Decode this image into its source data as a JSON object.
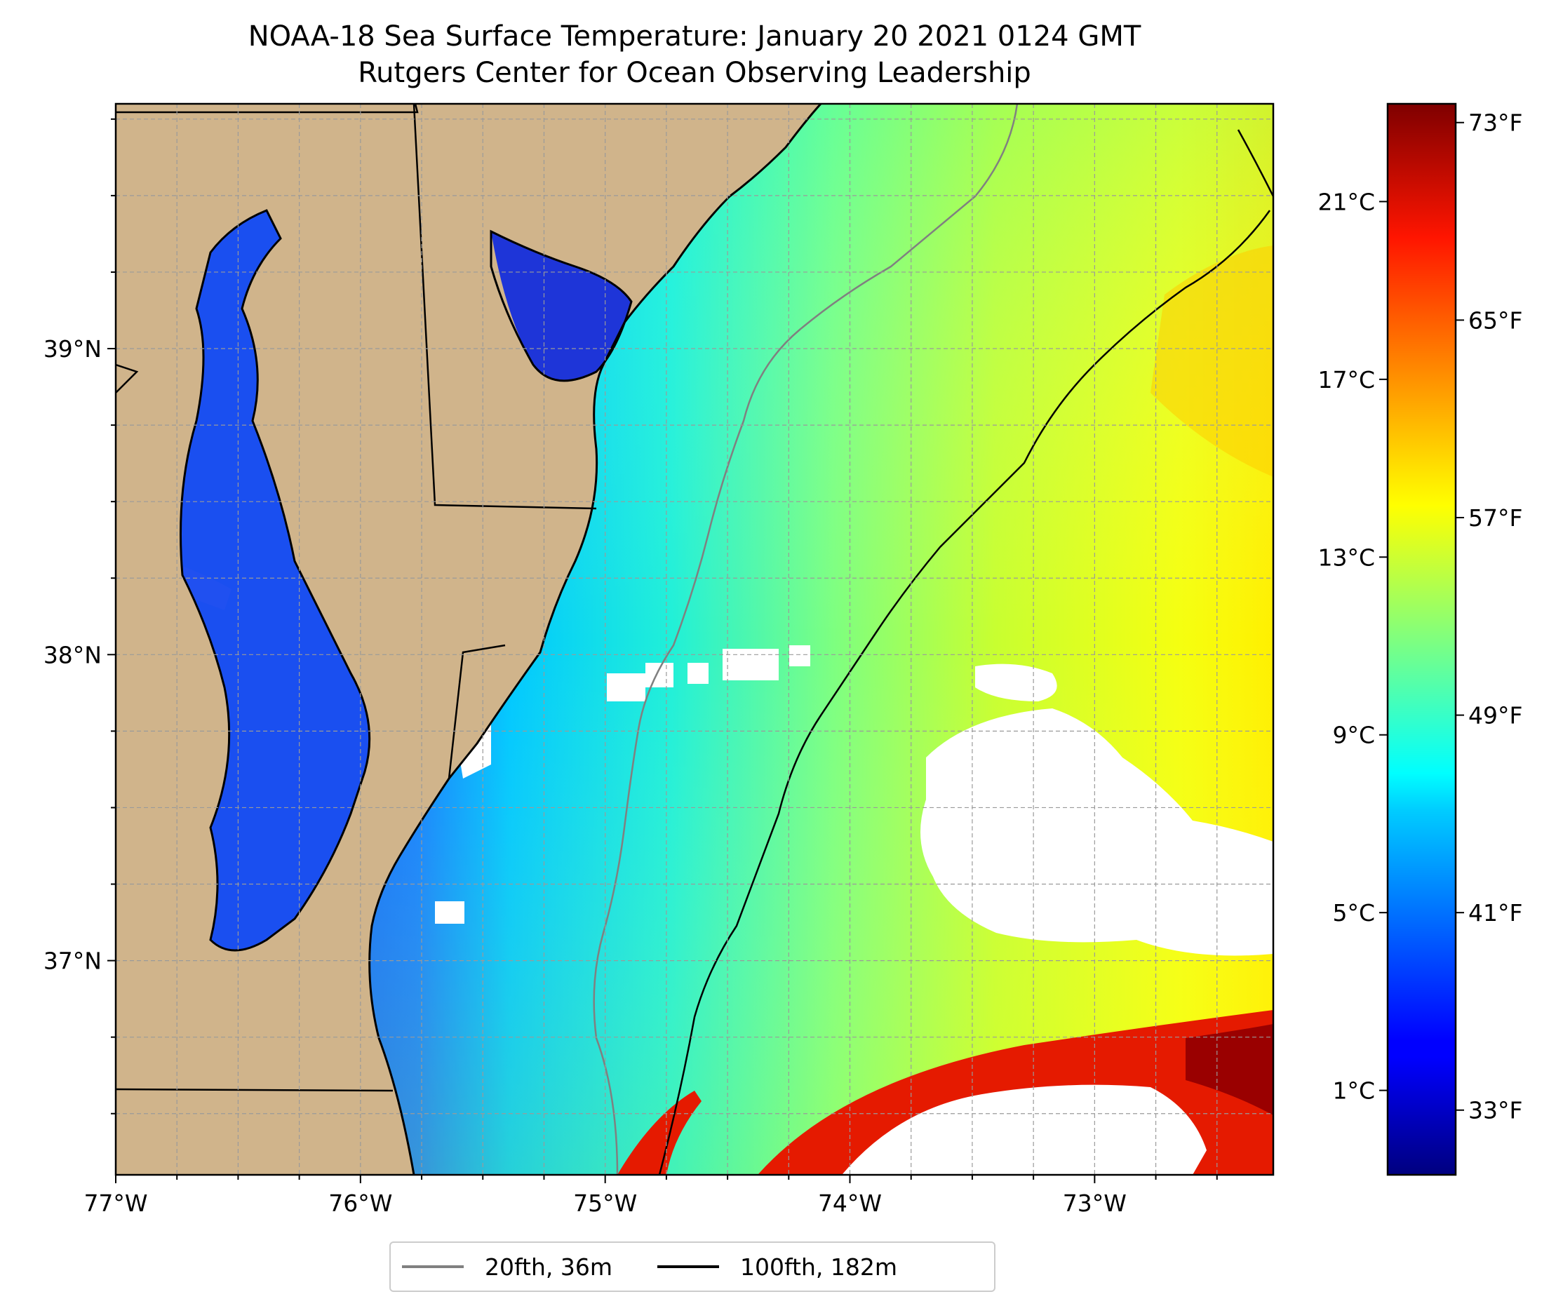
{
  "title": {
    "line1": "NOAA-18 Sea Surface Temperature: January 20 2021 0124 GMT",
    "line2": "Rutgers Center for Ocean Observing Leadership"
  },
  "map": {
    "lon_range": [
      -77.0,
      -72.27
    ],
    "lat_range": [
      36.3,
      39.8
    ],
    "lon_ticks": [
      {
        "value": -77,
        "label": "77°W"
      },
      {
        "value": -76,
        "label": "76°W"
      },
      {
        "value": -75,
        "label": "75°W"
      },
      {
        "value": -74,
        "label": "74°W"
      },
      {
        "value": -73,
        "label": "73°W"
      }
    ],
    "lat_ticks": [
      {
        "value": 39,
        "label": "39°N"
      },
      {
        "value": 38,
        "label": "38°N"
      },
      {
        "value": 37,
        "label": "37°N"
      }
    ],
    "gridlines": true,
    "land_color": "#d0b48b",
    "cloud_mask_color": "#ffffff"
  },
  "colorbar": {
    "colormap": "jet",
    "range_c": [
      -0.9,
      23.2
    ],
    "celsius_ticks": [
      {
        "value": 1,
        "label": "1°C"
      },
      {
        "value": 5,
        "label": "5°C"
      },
      {
        "value": 9,
        "label": "9°C"
      },
      {
        "value": 13,
        "label": "13°C"
      },
      {
        "value": 17,
        "label": "17°C"
      },
      {
        "value": 21,
        "label": "21°C"
      }
    ],
    "fahrenheit_ticks": [
      {
        "value_c": 0.556,
        "label": "33°F"
      },
      {
        "value_c": 5.0,
        "label": "41°F"
      },
      {
        "value_c": 9.444,
        "label": "49°F"
      },
      {
        "value_c": 13.889,
        "label": "57°F"
      },
      {
        "value_c": 18.333,
        "label": "65°F"
      },
      {
        "value_c": 22.778,
        "label": "73°F"
      }
    ]
  },
  "legend": {
    "placement": "bottom-center",
    "items": [
      {
        "label": "20fth, 36m",
        "color": "#808080"
      },
      {
        "label": "100fth, 182m",
        "color": "#000000"
      }
    ]
  }
}
